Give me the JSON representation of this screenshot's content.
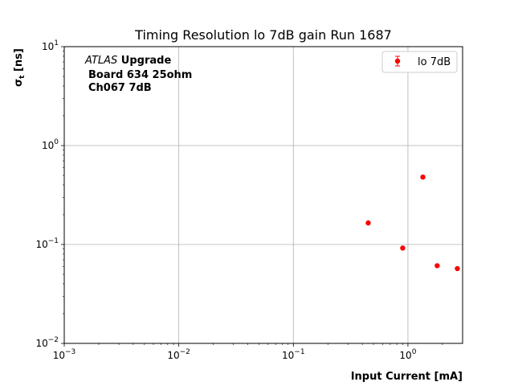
{
  "chart_data": {
    "type": "scatter",
    "title": "Timing Resolution lo 7dB gain Run 1687",
    "xlabel": "Input Current [mA]",
    "ylabel_main": "σ",
    "ylabel_sub": "t",
    "ylabel_unit": " [ns]",
    "xscale": "log",
    "yscale": "log",
    "xlim": [
      0.001,
      3.0
    ],
    "ylim": [
      0.01,
      10
    ],
    "grid": true,
    "legend_position": "top-right",
    "x_ticks": [
      {
        "value": 0.001,
        "base": "10",
        "exp": "−3"
      },
      {
        "value": 0.01,
        "base": "10",
        "exp": "−2"
      },
      {
        "value": 0.1,
        "base": "10",
        "exp": "−1"
      },
      {
        "value": 1,
        "base": "10",
        "exp": "0"
      }
    ],
    "y_ticks": [
      {
        "value": 0.01,
        "base": "10",
        "exp": "−2"
      },
      {
        "value": 0.1,
        "base": "10",
        "exp": "−1"
      },
      {
        "value": 1,
        "base": "10",
        "exp": "0"
      },
      {
        "value": 10,
        "base": "10",
        "exp": "1"
      }
    ],
    "annotation": {
      "experiment": "ATLAS",
      "tag": " Upgrade",
      "line2": "Board 634 25ohm",
      "line3": "Ch067 7dB"
    },
    "series": [
      {
        "name": "lo 7dB",
        "color": "#ff0000",
        "x": [
          0.45,
          0.9,
          1.35,
          1.8,
          2.7
        ],
        "y": [
          0.165,
          0.092,
          0.48,
          0.061,
          0.057
        ]
      }
    ]
  }
}
